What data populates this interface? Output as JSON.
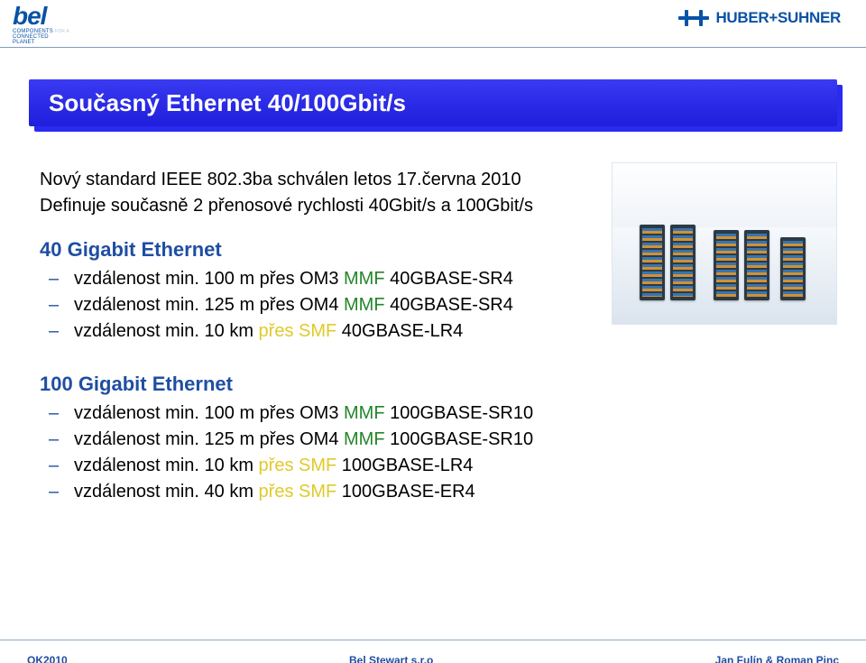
{
  "brand_left": {
    "name": "bel",
    "sub_line1": "COMPONENTS",
    "sub_for": "FOR A",
    "sub_line2": "CONNECTED",
    "sub_line3": "PLANET"
  },
  "brand_right": "HUBER+SUHNER",
  "title": "Současný Ethernet 40/100Gbit/s",
  "intro": {
    "line1": "Nový standard IEEE 802.3ba schválen letos 17.června 2010",
    "line2": "Definuje současně 2 přenosové rychlosti 40Gbit/s a 100Gbit/s"
  },
  "section1": {
    "heading": "40 Gigabit Ethernet",
    "items": [
      {
        "pre": "vzdálenost min. ",
        "dist": "100 m přes OM3",
        "mmf": " MMF ",
        "type": "40GBASE-SR4",
        "mode": "mmf"
      },
      {
        "pre": "vzdálenost min. ",
        "dist": "125 m přes OM4",
        "mmf": " MMF ",
        "type": "40GBASE-SR4",
        "mode": "mmf"
      },
      {
        "pre": "vzdálenost min. ",
        "dist": "10 km přes SMF",
        "mmf": " ",
        "type": "40GBASE-LR4",
        "mode": "smf"
      }
    ]
  },
  "section2": {
    "heading": "100 Gigabit Ethernet",
    "items": [
      {
        "pre": "vzdálenost min. ",
        "dist": "100 m přes OM3",
        "mmf": " MMF ",
        "type": "100GBASE-SR10",
        "mode": "mmf"
      },
      {
        "pre": "vzdálenost min. ",
        "dist": "125 m přes OM4",
        "mmf": " MMF ",
        "type": "100GBASE-SR10",
        "mode": "mmf"
      },
      {
        "pre": "vzdálenost min. ",
        "dist": "10 km přes SMF",
        "mmf": " ",
        "type": "100GBASE-LR4",
        "mode": "smf"
      },
      {
        "pre": "vzdálenost min. ",
        "dist": "40 km přes SMF",
        "mmf": " ",
        "type": "100GBASE-ER4",
        "mode": "smf"
      }
    ]
  },
  "footer": {
    "left": "OK2010",
    "center": "Bel Stewart s.r.o",
    "right": "Jan Fulín &  Roman Pinc"
  },
  "colors": {
    "mmf": "#24852a",
    "smf": "#e0ca2a",
    "accent": "#1f4ea3",
    "title_bg": "#2a2af0"
  }
}
